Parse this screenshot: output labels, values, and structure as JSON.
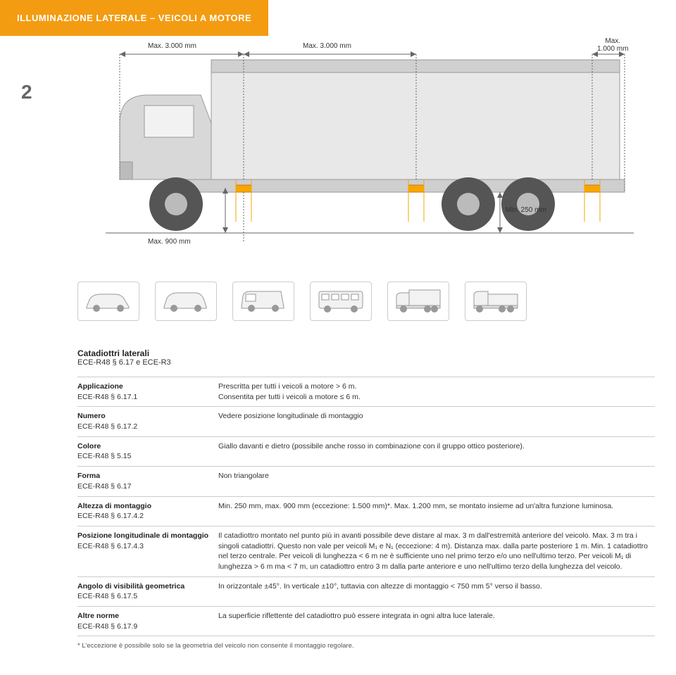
{
  "header": {
    "title": "ILLUMINAZIONE LATERALE – VEICOLI A MOTORE"
  },
  "section_number": "2",
  "diagram": {
    "truck_svg": {
      "bg": "#ffffff",
      "body_fill": "#e8e8e8",
      "body_stroke": "#999999",
      "cab_fill": "#d8d8d8",
      "wheel_fill": "#555555",
      "wheel_hub": "#bbbbbb",
      "reflector_fill": "#f7a600",
      "dim_line": "#666666"
    },
    "labels": {
      "max3000_a": "Max. 3.000 mm",
      "max3000_b": "Max. 3.000 mm",
      "max1000": "Max.\n1.000 mm",
      "max900": "Max. 900 mm",
      "min250": "Min. 250 mm"
    }
  },
  "title_block": {
    "t1": "Catadiottri laterali",
    "t2": "ECE-R48 § 6.17 e ECE-R3"
  },
  "rows": [
    {
      "lbl": "Applicazione",
      "ref": "ECE-R48 § 6.17.1",
      "val": "Prescritta per tutti i veicoli a motore > 6 m.\nConsentita per tutti i veicoli a motore ≤ 6 m."
    },
    {
      "lbl": "Numero",
      "ref": "ECE-R48 § 6.17.2",
      "val": "Vedere posizione longitudinale di montaggio"
    },
    {
      "lbl": "Colore",
      "ref": "ECE-R48 § 5.15",
      "val": "Giallo davanti e dietro (possibile anche rosso in combinazione con il gruppo ottico posteriore)."
    },
    {
      "lbl": "Forma",
      "ref": "ECE-R48 § 6.17",
      "val": "Non triangolare"
    },
    {
      "lbl": "Altezza di montaggio",
      "ref": "ECE-R48 § 6.17.4.2",
      "val": "Min. 250 mm, max. 900 mm (eccezione: 1.500 mm)*. Max. 1.200 mm, se montato insieme ad un'altra funzione luminosa."
    },
    {
      "lbl": "Posizione longitudinale di montaggio",
      "ref": "ECE-R48 § 6.17.4.3",
      "val": "Il catadiottro montato nel punto più in avanti possibile deve distare al max. 3 m dall'estremità anteriore del veicolo. Max. 3 m tra i singoli catadiottri. Questo non vale per veicoli M₁ e N₁ (eccezione: 4 m). Distanza max. dalla parte posteriore 1 m. Min. 1 catadiottro nel terzo centrale. Per veicoli di lunghezza < 6 m ne è sufficiente uno nel primo terzo e/o uno nell'ultimo terzo. Per veicoli M₁ di lunghezza > 6 m ma < 7 m, un catadiottro entro 3 m dalla parte anteriore e uno nell'ultimo terzo della lunghezza del veicolo."
    },
    {
      "lbl": "Angolo di visibilità geometrica",
      "ref": "ECE-R48 § 6.17.5",
      "val": "In orizzontale ±45°. In verticale ±10°, tuttavia con altezze di montaggio < 750 mm 5° verso il basso."
    },
    {
      "lbl": "Altre norme",
      "ref": "ECE-R48 § 6.17.9",
      "val": "La superficie riflettente del catadiottro può essere integrata in ogni altra luce laterale."
    }
  ],
  "footnote": "* L'eccezione è possibile solo se la geometria del veicolo non consente il montaggio regolare.",
  "vehicle_icons": {
    "stroke": "#999999",
    "fill": "#f2f2f2",
    "line_w": 1.2
  }
}
